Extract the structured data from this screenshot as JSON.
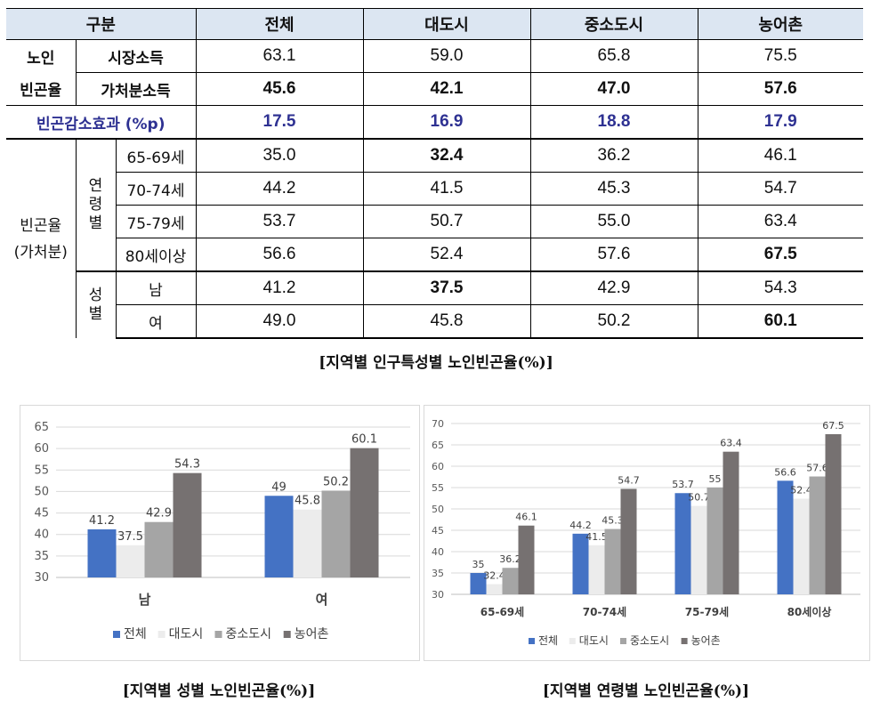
{
  "table": {
    "header": [
      "구분",
      "전체",
      "대도시",
      "중소도시",
      "농어촌"
    ],
    "senior_label_1": "노인",
    "senior_label_2": "빈곤율",
    "market_income": {
      "label": "시장소득",
      "values": [
        "63.1",
        "59.0",
        "65.8",
        "75.5"
      ]
    },
    "disposable_income": {
      "label": "가처분소득",
      "values": [
        "45.6",
        "42.1",
        "47.0",
        "57.6"
      ]
    },
    "reduction_effect": {
      "label": "빈곤감소효과 (%p)",
      "values": [
        "17.5",
        "16.9",
        "18.8",
        "17.9"
      ]
    },
    "group_label_1": "빈곤율",
    "group_label_2": "(가처분)",
    "age_label": [
      "연",
      "령",
      "별"
    ],
    "sex_label": [
      "성",
      "별"
    ],
    "age_rows": [
      {
        "label": "65-69세",
        "values": [
          "35.0",
          "32.4",
          "36.2",
          "46.1"
        ]
      },
      {
        "label": "70-74세",
        "values": [
          "44.2",
          "41.5",
          "45.3",
          "54.7"
        ]
      },
      {
        "label": "75-79세",
        "values": [
          "53.7",
          "50.7",
          "55.0",
          "63.4"
        ]
      },
      {
        "label": "80세이상",
        "values": [
          "56.6",
          "52.4",
          "57.6",
          "67.5"
        ]
      }
    ],
    "sex_rows": [
      {
        "label": "남",
        "values": [
          "41.2",
          "37.5",
          "42.9",
          "54.3"
        ]
      },
      {
        "label": "여",
        "values": [
          "49.0",
          "45.8",
          "50.2",
          "60.1"
        ]
      }
    ]
  },
  "captions": {
    "table": "[지역별 인구특성별 노인빈곤율(%)]",
    "chart_sex": "[지역별 성별 노인빈곤율(%)]",
    "chart_age": "[지역별 연령별 노인빈곤율(%)]"
  },
  "colors": {
    "전체": "#4472c4",
    "대도시": "#ececec",
    "중소도시": "#a5a5a5",
    "농어촌": "#767171"
  },
  "chart_data": [
    {
      "type": "bar",
      "categories": [
        "남",
        "여"
      ],
      "series": [
        {
          "name": "전체",
          "values": [
            41.2,
            49
          ]
        },
        {
          "name": "대도시",
          "values": [
            37.5,
            45.8
          ]
        },
        {
          "name": "중소도시",
          "values": [
            42.9,
            50.2
          ]
        },
        {
          "name": "농어촌",
          "values": [
            54.3,
            60.1
          ]
        }
      ],
      "title": "",
      "xlabel": "",
      "ylabel": "",
      "ylim": [
        30,
        65
      ],
      "yticks": [
        30,
        35,
        40,
        45,
        50,
        55,
        60,
        65
      ],
      "grid": true,
      "legend": "bottom"
    },
    {
      "type": "bar",
      "categories": [
        "65-69세",
        "70-74세",
        "75-79세",
        "80세이상"
      ],
      "series": [
        {
          "name": "전체",
          "values": [
            35,
            44.2,
            53.7,
            56.6
          ]
        },
        {
          "name": "대도시",
          "values": [
            32.4,
            41.5,
            50.7,
            52.4
          ]
        },
        {
          "name": "중소도시",
          "values": [
            36.2,
            45.3,
            55,
            57.6
          ]
        },
        {
          "name": "농어촌",
          "values": [
            46.1,
            54.7,
            63.4,
            67.5
          ]
        }
      ],
      "title": "",
      "xlabel": "",
      "ylabel": "",
      "ylim": [
        30,
        70
      ],
      "yticks": [
        30,
        35,
        40,
        45,
        50,
        55,
        60,
        65,
        70
      ],
      "grid": true,
      "legend": "bottom"
    }
  ]
}
